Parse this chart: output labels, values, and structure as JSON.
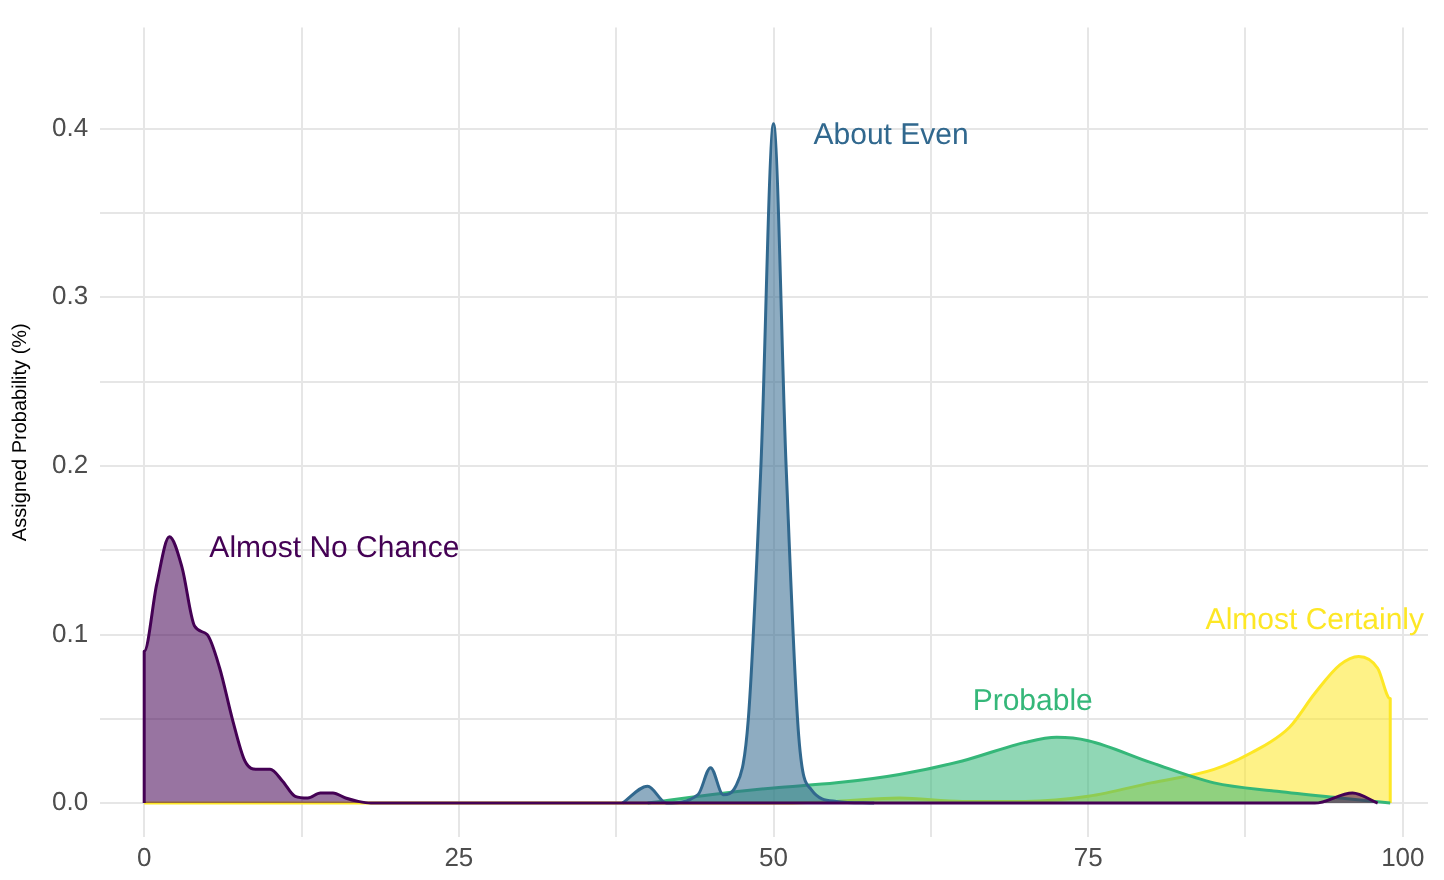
{
  "chart_data": {
    "type": "area",
    "ylabel": "Assigned Probability (%)",
    "xlim": [
      -3.5,
      102
    ],
    "ylim": [
      -0.02,
      0.46
    ],
    "xticks": [
      0,
      {
        "value": 12.5,
        "label": null
      },
      25,
      {
        "value": 37.5,
        "label": null
      },
      50,
      {
        "value": 62.5,
        "label": null
      },
      75,
      {
        "value": 87.5,
        "label": null
      },
      100
    ],
    "yticks": [
      {
        "value": 0,
        "label": "0.0"
      },
      {
        "value": 0.05,
        "label": null
      },
      0.1,
      {
        "value": 0.15,
        "label": null
      },
      0.2,
      {
        "value": 0.25,
        "label": null
      },
      0.3,
      {
        "value": 0.35,
        "label": null
      },
      0.4
    ],
    "grid": true,
    "legend": false,
    "series": [
      {
        "name": "Almost No Chance",
        "color": "#440154",
        "x": [
          0,
          0,
          1,
          2,
          3,
          4,
          5,
          6,
          7,
          8,
          9,
          10,
          11,
          12,
          13,
          14,
          15,
          16,
          17,
          18,
          93,
          96,
          98
        ],
        "values": [
          0,
          0.09,
          0.13,
          0.158,
          0.14,
          0.105,
          0.1,
          0.08,
          0.05,
          0.025,
          0.02,
          0.02,
          0.013,
          0.004,
          0.003,
          0.006,
          0.006,
          0.003,
          0.001,
          0,
          0,
          0.006,
          0
        ]
      },
      {
        "name": "About Even",
        "color": "#31688e",
        "x": [
          38,
          40,
          41.5,
          44,
          45,
          46,
          47,
          48,
          49,
          50,
          51,
          52,
          53,
          55,
          58
        ],
        "values": [
          0,
          0.01,
          0,
          0.005,
          0.021,
          0.005,
          0.01,
          0.05,
          0.2,
          0.403,
          0.2,
          0.04,
          0.008,
          0.001,
          0
        ]
      },
      {
        "name": "Probable",
        "color": "#35b779",
        "x": [
          40,
          45,
          50,
          55,
          60,
          65,
          70,
          72.5,
          75,
          80,
          85,
          90,
          95,
          99
        ],
        "values": [
          0,
          0.005,
          0.009,
          0.012,
          0.017,
          0.025,
          0.036,
          0.039,
          0.037,
          0.024,
          0.012,
          0.007,
          0.003,
          0
        ]
      },
      {
        "name": "Almost Certainly",
        "color": "#fde725",
        "x": [
          0,
          50,
          55,
          60,
          65,
          70,
          75,
          80,
          85,
          88,
          91,
          93,
          95,
          96.5,
          98,
          99,
          99
        ],
        "values": [
          0,
          0,
          0.001,
          0.003,
          0.001,
          0.001,
          0.004,
          0.012,
          0.02,
          0.03,
          0.045,
          0.065,
          0.082,
          0.087,
          0.08,
          0.062,
          0
        ]
      }
    ]
  }
}
